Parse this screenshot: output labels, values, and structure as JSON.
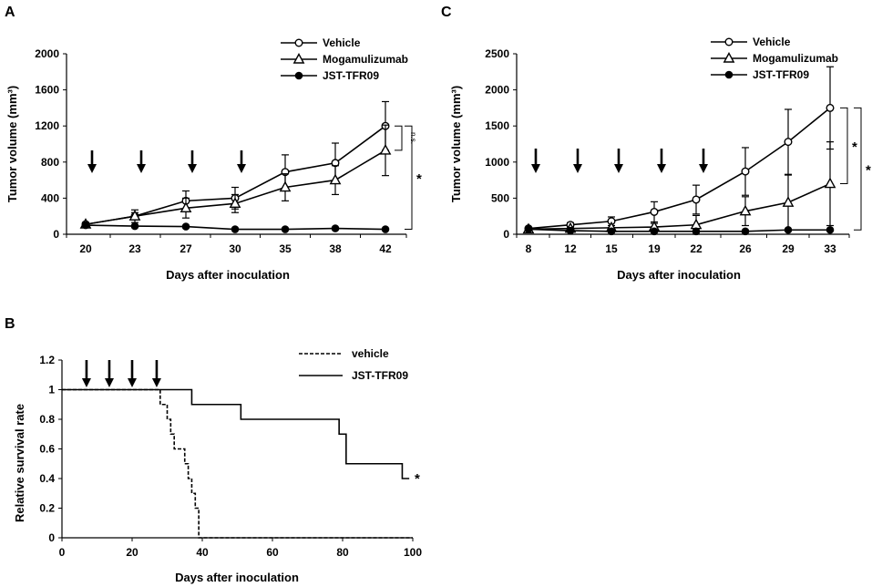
{
  "chart_data": [
    {
      "panel": "A",
      "type": "line",
      "ylabel": "Tumor volume (mm³)",
      "xlabel": "Days after inoculation",
      "categories": [
        "20",
        "23",
        "27",
        "30",
        "35",
        "38",
        "42"
      ],
      "yticks": [
        0,
        400,
        800,
        1200,
        1600,
        2000
      ],
      "ytick_labels": [
        "0",
        "400",
        "800",
        "1200",
        "1600",
        "2000"
      ],
      "ylim": [
        0,
        2000
      ],
      "legend_position": "top-right",
      "series": [
        {
          "name": "Vehicle",
          "marker": "open-circle",
          "values": [
            110,
            200,
            370,
            400,
            690,
            790,
            1200
          ],
          "errors": [
            20,
            40,
            110,
            120,
            190,
            220,
            270
          ]
        },
        {
          "name": "Mogamulizumab",
          "marker": "open-triangle",
          "values": [
            110,
            200,
            290,
            340,
            520,
            600,
            930
          ],
          "errors": [
            20,
            70,
            110,
            100,
            150,
            160,
            280
          ]
        },
        {
          "name": "JST-TFR09",
          "marker": "filled-circle",
          "values": [
            100,
            90,
            85,
            55,
            55,
            65,
            55
          ],
          "errors": [
            0,
            0,
            0,
            0,
            0,
            0,
            0
          ]
        }
      ],
      "arrows_at": [
        "20",
        "23",
        "27",
        "30"
      ],
      "annotations": {
        "bracket_inner": "n.s.",
        "bracket_outer": "*"
      }
    },
    {
      "panel": "C",
      "type": "line",
      "ylabel": "Tumor volume (mm³)",
      "xlabel": "Days after inoculation",
      "categories": [
        "8",
        "12",
        "15",
        "19",
        "22",
        "26",
        "29",
        "33"
      ],
      "yticks": [
        0,
        500,
        1000,
        1500,
        2000,
        2500
      ],
      "ytick_labels": [
        "0",
        "500",
        "1000",
        "1500",
        "2000",
        "2500"
      ],
      "ylim": [
        0,
        2500
      ],
      "legend_position": "top-right",
      "series": [
        {
          "name": "Vehicle",
          "marker": "open-circle",
          "values": [
            80,
            130,
            180,
            310,
            480,
            870,
            1280,
            1750
          ],
          "errors": [
            10,
            30,
            60,
            140,
            200,
            330,
            450,
            570
          ]
        },
        {
          "name": "Mogamulizumab",
          "marker": "open-triangle",
          "values": [
            70,
            80,
            90,
            100,
            130,
            320,
            440,
            700
          ],
          "errors": [
            10,
            20,
            30,
            50,
            130,
            200,
            380,
            580
          ]
        },
        {
          "name": "JST-TFR09",
          "marker": "filled-circle",
          "values": [
            70,
            50,
            40,
            40,
            40,
            40,
            60,
            60
          ],
          "errors": [
            0,
            0,
            0,
            0,
            0,
            0,
            0,
            0
          ]
        }
      ],
      "arrows_at": [
        "8",
        "12",
        "15",
        "19",
        "22"
      ],
      "annotations": {
        "bracket_inner": "*",
        "bracket_outer": "*"
      }
    },
    {
      "panel": "B",
      "type": "line",
      "ylabel": "Relative survival rate",
      "xlabel": "Days after inoculation",
      "xticks": [
        0,
        20,
        40,
        60,
        80,
        100
      ],
      "xtick_labels": [
        "0",
        "20",
        "40",
        "60",
        "80",
        "100"
      ],
      "yticks": [
        0,
        0.2,
        0.4,
        0.6,
        0.8,
        1,
        1.2
      ],
      "ytick_labels": [
        "0",
        "0.2",
        "0.4",
        "0.6",
        "0.8",
        "1",
        "1.2"
      ],
      "xlim": [
        0,
        100
      ],
      "ylim": [
        0,
        1.2
      ],
      "legend_position": "top-right",
      "series": [
        {
          "name": "vehicle",
          "style": "dashed",
          "step": true,
          "x": [
            0,
            27,
            28,
            30,
            31,
            32,
            35,
            36,
            37,
            38,
            39
          ],
          "y": [
            1,
            1,
            0.9,
            0.8,
            0.7,
            0.6,
            0.5,
            0.4,
            0.3,
            0.2,
            0.0
          ]
        },
        {
          "name": "JST-TFR09",
          "style": "solid",
          "step": true,
          "x": [
            0,
            37,
            51,
            79,
            81,
            97,
            99
          ],
          "y": [
            1,
            0.9,
            0.8,
            0.7,
            0.5,
            0.4,
            0.4
          ]
        }
      ],
      "arrows_at_x": [
        7,
        13.5,
        20,
        27
      ],
      "annotations": {
        "significance": "*"
      }
    }
  ]
}
